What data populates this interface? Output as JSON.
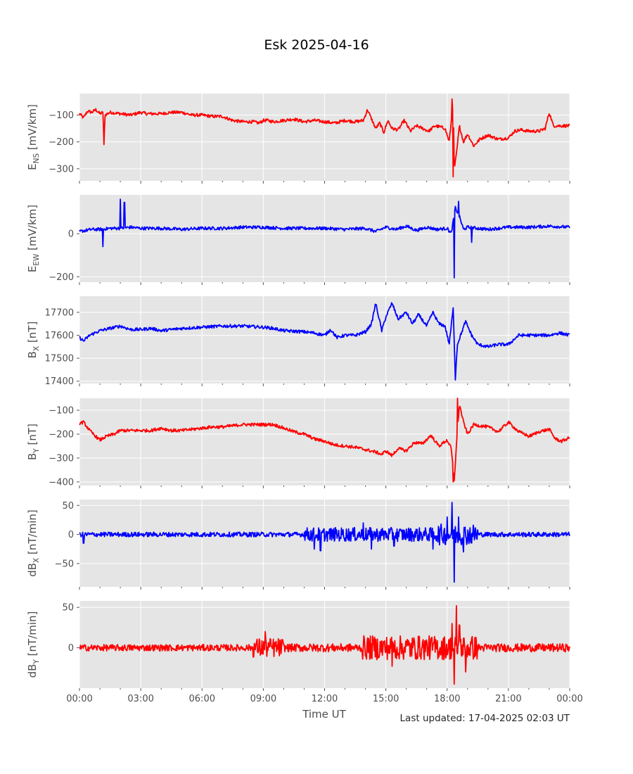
{
  "figure": {
    "title": "Esk 2025-04-16",
    "xlabel": "Time UT",
    "footer": "Last updated: 17-04-2025 02:03 UT"
  },
  "style": {
    "plot_background": "#e5e5e5",
    "grid_color": "#ffffff",
    "red": "#ff0000",
    "blue": "#0000ff"
  },
  "chart_data": [
    {
      "type": "line",
      "ylabel_main": "E",
      "ylabel_sub": "NS",
      "ylabel_unit": " [mV/km]",
      "color": "red",
      "ylim": [
        -345,
        -20
      ],
      "yticks": [
        -300,
        -200,
        -100
      ],
      "ytick_labels": [
        "−300",
        "−200",
        "−100"
      ],
      "xlim": [
        0,
        24
      ],
      "xticks": [
        0,
        3,
        6,
        9,
        12,
        15,
        18,
        21,
        24
      ],
      "xtick_labels": [
        "00:00",
        "03:00",
        "06:00",
        "09:00",
        "12:00",
        "15:00",
        "18:00",
        "21:00",
        "00:00"
      ],
      "x": [
        0,
        0.2,
        0.4,
        0.6,
        0.8,
        1.0,
        1.15,
        1.2,
        1.25,
        1.5,
        2,
        2.5,
        3,
        3.3,
        3.6,
        4,
        4.5,
        5,
        5.5,
        6,
        6.5,
        7,
        7.5,
        8,
        8.5,
        8.8,
        9.0,
        9.2,
        9.5,
        10,
        10.5,
        11,
        11.5,
        12,
        12.5,
        13,
        13.5,
        13.9,
        14.1,
        14.3,
        14.5,
        14.7,
        14.9,
        15.1,
        15.3,
        15.6,
        15.9,
        16.2,
        16.5,
        16.8,
        17.1,
        17.4,
        17.7,
        17.9,
        18.1,
        18.3,
        18.35,
        18.45,
        18.6,
        18.8,
        19.0,
        19.3,
        19.6,
        20.0,
        20.5,
        21.0,
        21.3,
        21.6,
        22.0,
        22.5,
        22.8,
        23.0,
        23.2,
        23.5,
        24.0
      ],
      "y": [
        -95,
        -110,
        -85,
        -90,
        -80,
        -95,
        -90,
        -210,
        -100,
        -90,
        -95,
        -100,
        -90,
        -95,
        -95,
        -95,
        -90,
        -90,
        -100,
        -100,
        -105,
        -105,
        -120,
        -125,
        -125,
        -130,
        -120,
        -120,
        -125,
        -120,
        -115,
        -125,
        -120,
        -125,
        -130,
        -120,
        -125,
        -120,
        -80,
        -115,
        -150,
        -130,
        -165,
        -120,
        -150,
        -155,
        -120,
        -160,
        -140,
        -150,
        -160,
        -140,
        -145,
        -150,
        -200,
        -50,
        -300,
        -250,
        -140,
        -200,
        -170,
        -215,
        -190,
        -175,
        -190,
        -185,
        -160,
        -155,
        -160,
        -160,
        -150,
        -90,
        -140,
        -140,
        -140
      ],
      "spikes": [
        {
          "x": 1.2,
          "y": -210
        },
        {
          "x": 18.3,
          "y": -330
        },
        {
          "x": 18.25,
          "y": -40
        }
      ]
    },
    {
      "type": "line",
      "ylabel_main": "E",
      "ylabel_sub": "EW",
      "ylabel_unit": " [mV/km]",
      "color": "blue",
      "ylim": [
        -225,
        180
      ],
      "yticks": [
        -200,
        0
      ],
      "ytick_labels": [
        "−200",
        "0"
      ],
      "xlim": [
        0,
        24
      ],
      "xticks": [
        0,
        3,
        6,
        9,
        12,
        15,
        18,
        21,
        24
      ],
      "xtick_labels": [
        "00:00",
        "03:00",
        "06:00",
        "09:00",
        "12:00",
        "15:00",
        "18:00",
        "21:00",
        "00:00"
      ],
      "x": [
        0,
        0.3,
        0.6,
        1.0,
        1.5,
        2.0,
        2.5,
        3,
        4,
        5,
        6,
        7,
        8,
        9,
        10,
        11,
        12,
        13,
        14,
        14.5,
        15,
        15.5,
        16,
        16.5,
        17,
        17.5,
        18,
        18.2,
        18.4,
        18.6,
        18.8,
        19,
        19.5,
        20,
        21,
        22,
        23,
        24
      ],
      "y": [
        10,
        15,
        20,
        20,
        25,
        25,
        30,
        25,
        25,
        20,
        25,
        25,
        30,
        30,
        25,
        25,
        25,
        20,
        25,
        10,
        30,
        20,
        35,
        15,
        30,
        20,
        25,
        0,
        120,
        80,
        20,
        30,
        25,
        20,
        30,
        30,
        35,
        30
      ],
      "spikes": [
        {
          "x": 1.15,
          "y": -60
        },
        {
          "x": 2.0,
          "y": 160
        },
        {
          "x": 2.2,
          "y": 145
        },
        {
          "x": 18.35,
          "y": -205
        },
        {
          "x": 18.55,
          "y": 150
        },
        {
          "x": 19.2,
          "y": -40
        }
      ]
    },
    {
      "type": "line",
      "ylabel_main": "B",
      "ylabel_sub": "X",
      "ylabel_unit": " [nT]",
      "color": "blue",
      "ylim": [
        17390,
        17770
      ],
      "yticks": [
        17400,
        17500,
        17600,
        17700
      ],
      "ytick_labels": [
        "17400",
        "17500",
        "17600",
        "17700"
      ],
      "xlim": [
        0,
        24
      ],
      "xticks": [
        0,
        3,
        6,
        9,
        12,
        15,
        18,
        21,
        24
      ],
      "xtick_labels": [
        "00:00",
        "03:00",
        "06:00",
        "09:00",
        "12:00",
        "15:00",
        "18:00",
        "21:00",
        "00:00"
      ],
      "x": [
        0,
        0.2,
        0.5,
        1.0,
        1.5,
        2.0,
        2.5,
        3.0,
        3.5,
        4.0,
        5.0,
        6.0,
        7.0,
        8.0,
        9.0,
        9.5,
        10,
        11,
        11.5,
        12,
        12.3,
        12.6,
        13,
        13.5,
        14,
        14.3,
        14.5,
        14.8,
        15.0,
        15.3,
        15.6,
        16.0,
        16.3,
        16.6,
        17.0,
        17.3,
        17.6,
        17.9,
        18.1,
        18.3,
        18.4,
        18.5,
        18.7,
        18.9,
        19.2,
        19.5,
        20.0,
        20.5,
        21.0,
        21.5,
        22.0,
        22.5,
        23.0,
        23.5,
        24.0
      ],
      "y": [
        17590,
        17575,
        17600,
        17620,
        17630,
        17640,
        17625,
        17625,
        17630,
        17620,
        17630,
        17635,
        17640,
        17640,
        17635,
        17630,
        17620,
        17615,
        17610,
        17600,
        17625,
        17590,
        17600,
        17600,
        17615,
        17650,
        17740,
        17620,
        17680,
        17740,
        17670,
        17700,
        17650,
        17690,
        17640,
        17700,
        17650,
        17640,
        17560,
        17720,
        17410,
        17560,
        17610,
        17660,
        17600,
        17560,
        17550,
        17560,
        17560,
        17600,
        17600,
        17600,
        17600,
        17610,
        17600
      ]
    },
    {
      "type": "line",
      "ylabel_main": "B",
      "ylabel_sub": "Y",
      "ylabel_unit": " [nT]",
      "color": "red",
      "ylim": [
        -415,
        -50
      ],
      "yticks": [
        -400,
        -300,
        -200,
        -100
      ],
      "ytick_labels": [
        "−400",
        "−300",
        "−200",
        "−100"
      ],
      "xlim": [
        0,
        24
      ],
      "xticks": [
        0,
        3,
        6,
        9,
        12,
        15,
        18,
        21,
        24
      ],
      "xtick_labels": [
        "00:00",
        "03:00",
        "06:00",
        "09:00",
        "12:00",
        "15:00",
        "18:00",
        "21:00",
        "00:00"
      ],
      "x": [
        0,
        0.2,
        0.5,
        0.8,
        1.0,
        1.3,
        1.7,
        2.0,
        2.5,
        3.0,
        3.5,
        4.0,
        4.5,
        5.0,
        5.5,
        6.0,
        6.5,
        7.0,
        7.5,
        8.0,
        8.5,
        9.0,
        9.5,
        10.0,
        10.5,
        11.0,
        11.5,
        12.0,
        12.5,
        13.0,
        13.5,
        14.0,
        14.5,
        14.8,
        15.0,
        15.3,
        15.6,
        16.0,
        16.4,
        16.8,
        17.2,
        17.6,
        18.0,
        18.2,
        18.35,
        18.45,
        18.6,
        18.8,
        19.0,
        19.3,
        19.6,
        20.0,
        20.5,
        21.0,
        21.5,
        21.8,
        22.0,
        22.5,
        23.0,
        23.3,
        23.6,
        24.0
      ],
      "y": [
        -155,
        -150,
        -185,
        -210,
        -225,
        -210,
        -200,
        -185,
        -185,
        -185,
        -185,
        -175,
        -185,
        -185,
        -180,
        -175,
        -170,
        -170,
        -165,
        -160,
        -160,
        -160,
        -160,
        -175,
        -190,
        -200,
        -220,
        -230,
        -245,
        -250,
        -255,
        -265,
        -275,
        -285,
        -270,
        -290,
        -260,
        -270,
        -235,
        -240,
        -205,
        -250,
        -225,
        -260,
        -395,
        -250,
        -75,
        -150,
        -200,
        -160,
        -165,
        -170,
        -190,
        -150,
        -190,
        -200,
        -210,
        -190,
        -180,
        -220,
        -230,
        -215
      ],
      "spikes": [
        {
          "x": 18.5,
          "y": -50
        },
        {
          "x": 18.3,
          "y": -400
        }
      ]
    },
    {
      "type": "line",
      "ylabel_main": "dB",
      "ylabel_sub": "X",
      "ylabel_unit": " [nT/min]",
      "color": "blue",
      "ylim": [
        -90,
        60
      ],
      "yticks": [
        -50,
        0,
        50
      ],
      "ytick_labels": [
        "−50",
        "0",
        "50"
      ],
      "xlim": [
        0,
        24
      ],
      "xticks": [
        0,
        3,
        6,
        9,
        12,
        15,
        18,
        21,
        24
      ],
      "xtick_labels": [
        "00:00",
        "03:00",
        "06:00",
        "09:00",
        "12:00",
        "15:00",
        "18:00",
        "21:00",
        "00:00"
      ],
      "x": [
        0,
        12,
        18.1,
        18.3,
        18.4,
        24
      ],
      "y": [
        0,
        0,
        0,
        0,
        0,
        0
      ],
      "spikes": [
        {
          "x": 0.2,
          "y": -15
        },
        {
          "x": 11.5,
          "y": -25
        },
        {
          "x": 11.8,
          "y": -28
        },
        {
          "x": 13.9,
          "y": 20
        },
        {
          "x": 14.3,
          "y": -25
        },
        {
          "x": 15.4,
          "y": -20
        },
        {
          "x": 17.3,
          "y": -25
        },
        {
          "x": 18.0,
          "y": 30
        },
        {
          "x": 18.25,
          "y": 55
        },
        {
          "x": 18.35,
          "y": -82
        },
        {
          "x": 18.55,
          "y": 30
        },
        {
          "x": 18.8,
          "y": -30
        }
      ],
      "noise": [
        {
          "from": 0,
          "to": 11,
          "amp": 4
        },
        {
          "from": 11,
          "to": 17.5,
          "amp": 12
        },
        {
          "from": 17.5,
          "to": 19.5,
          "amp": 18
        },
        {
          "from": 19.5,
          "to": 24,
          "amp": 4
        }
      ]
    },
    {
      "type": "line",
      "ylabel_main": "dB",
      "ylabel_sub": "Y",
      "ylabel_unit": " [nT/min]",
      "color": "red",
      "ylim": [
        -50,
        58
      ],
      "yticks": [
        0,
        50
      ],
      "ytick_labels": [
        "0",
        "50"
      ],
      "xlim": [
        0,
        24
      ],
      "xticks": [
        0,
        3,
        6,
        9,
        12,
        15,
        18,
        21,
        24
      ],
      "xtick_labels": [
        "00:00",
        "03:00",
        "06:00",
        "09:00",
        "12:00",
        "15:00",
        "18:00",
        "21:00",
        "00:00"
      ],
      "x": [
        0,
        24
      ],
      "y": [
        0,
        0
      ],
      "spikes": [
        {
          "x": 9.1,
          "y": 20
        },
        {
          "x": 15.3,
          "y": -23
        },
        {
          "x": 18.25,
          "y": 30
        },
        {
          "x": 18.35,
          "y": -45
        },
        {
          "x": 18.45,
          "y": 52
        },
        {
          "x": 18.6,
          "y": 28
        },
        {
          "x": 18.9,
          "y": -30
        }
      ],
      "noise": [
        {
          "from": 0,
          "to": 8.5,
          "amp": 4
        },
        {
          "from": 8.5,
          "to": 10,
          "amp": 12
        },
        {
          "from": 10,
          "to": 13.8,
          "amp": 5
        },
        {
          "from": 13.8,
          "to": 19.5,
          "amp": 15
        },
        {
          "from": 19.5,
          "to": 24,
          "amp": 5
        }
      ]
    }
  ]
}
